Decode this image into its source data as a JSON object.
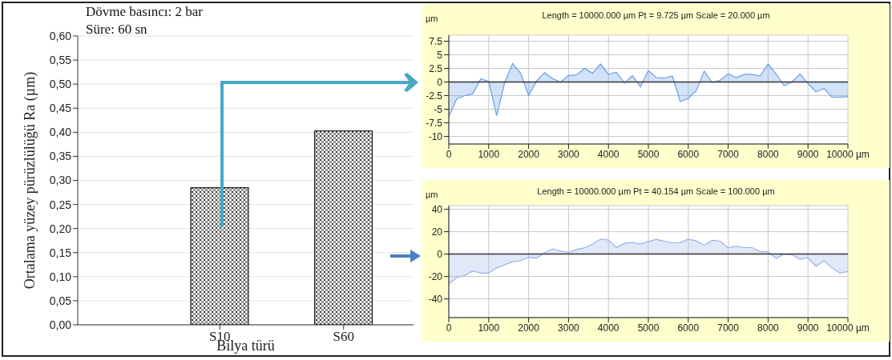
{
  "chart_data": [
    {
      "type": "bar",
      "xlabel": "Bilya türü",
      "ylabel": "Ortalama yüzey pürüzlülüğü  Ra (µm)",
      "categories": [
        "S10",
        "S60"
      ],
      "series": [
        {
          "color": "#222222",
          "values": [
            0.285,
            0.403
          ]
        }
      ],
      "ylim": [
        0,
        0.6
      ],
      "yticks": [
        {
          "value": 0,
          "label": "0,00"
        },
        {
          "value": 0.05,
          "label": "0,05"
        },
        {
          "value": 0.1,
          "label": "0,10"
        },
        {
          "value": 0.15,
          "label": "0,15"
        },
        {
          "value": 0.2,
          "label": "0,20"
        },
        {
          "value": 0.25,
          "label": "0,25"
        },
        {
          "value": 0.3,
          "label": "0,30"
        },
        {
          "value": 0.35,
          "label": "0,35"
        },
        {
          "value": 0.4,
          "label": "0,40"
        },
        {
          "value": 0.45,
          "label": "0,45"
        },
        {
          "value": 0.5,
          "label": "0,50"
        },
        {
          "value": 0.55,
          "label": "0,55"
        },
        {
          "value": 0.6,
          "label": "0,60"
        }
      ],
      "grid": "y",
      "annotations": [
        "Dövme basıncı: 2 bar",
        "Süre: 60 sn"
      ]
    },
    {
      "type": "area",
      "title": "Length = 10000.000 µm  Pt = 9.725 µm  Scale = 20.000 µm",
      "ylabel": "µm",
      "x": [
        0,
        200,
        400,
        600,
        800,
        1000,
        1200,
        1400,
        1600,
        1800,
        2000,
        2200,
        2400,
        2600,
        2800,
        3000,
        3200,
        3400,
        3600,
        3800,
        4000,
        4200,
        4400,
        4600,
        4800,
        5000,
        5200,
        5400,
        5600,
        5800,
        6000,
        6200,
        6400,
        6600,
        6800,
        7000,
        7200,
        7400,
        7600,
        7800,
        8000,
        8200,
        8400,
        8600,
        8800,
        9000,
        9200,
        9400,
        9600,
        9800,
        10000
      ],
      "series": [
        {
          "color": "#6a9ee8",
          "values": [
            -6.4,
            -3.1,
            -2.5,
            -2.2,
            0.6,
            0.1,
            -6.2,
            -0.1,
            3.4,
            1.6,
            -2.5,
            0.2,
            1.7,
            0.6,
            0,
            1.2,
            1.3,
            2.5,
            1.6,
            3.3,
            1.4,
            1.8,
            -0.2,
            1.2,
            -0.9,
            2.1,
            0.8,
            0.7,
            1.1,
            -3.6,
            -3,
            -1.6,
            2,
            -0.1,
            0.3,
            1.5,
            0.8,
            1.4,
            1.4,
            1.1,
            3.3,
            1.5,
            -0.7,
            0,
            1.5,
            -0.3,
            -1.8,
            -1.2,
            -2.8,
            -2.8,
            -2.7
          ]
        }
      ],
      "xlim": [
        0,
        10000
      ],
      "xticks": [
        0,
        1000,
        2000,
        3000,
        4000,
        5000,
        6000,
        7000,
        8000,
        9000,
        {
          "value": 10000,
          "label": "10000 µm"
        }
      ],
      "ylim": [
        -11.4,
        8.6
      ],
      "yticks": [
        -10,
        -7.5,
        -5,
        -2.5,
        0,
        2.5,
        5,
        7.5
      ],
      "grid": true,
      "ref_lines": [
        {
          "axis": "y",
          "value": 0,
          "color": "#333333"
        }
      ]
    },
    {
      "type": "area",
      "title": "Length = 10000.000 µm  Pt = 40.154 µm  Scale = 100.000 µm",
      "ylabel": "µm",
      "x": [
        0,
        200,
        400,
        600,
        800,
        1000,
        1200,
        1400,
        1600,
        1800,
        2000,
        2200,
        2400,
        2600,
        2800,
        3000,
        3200,
        3400,
        3600,
        3800,
        4000,
        4200,
        4400,
        4600,
        4800,
        5000,
        5200,
        5400,
        5600,
        5800,
        6000,
        6200,
        6400,
        6600,
        6800,
        7000,
        7200,
        7400,
        7600,
        7800,
        8000,
        8200,
        8400,
        8600,
        8800,
        9000,
        9200,
        9400,
        9600,
        9800,
        10000
      ],
      "series": [
        {
          "color": "#9ab2e8",
          "values": [
            -26.6,
            -21,
            -19,
            -15,
            -17,
            -17,
            -12.3,
            -9.6,
            -6.8,
            -6,
            -3,
            -3.6,
            1.1,
            4.7,
            2.7,
            1.4,
            4.1,
            5.5,
            9,
            13.4,
            12.6,
            6,
            9.6,
            10.4,
            9,
            11.2,
            13.2,
            11.5,
            10.1,
            10.4,
            13.4,
            11.8,
            8,
            12.3,
            11.5,
            5.5,
            7.1,
            5.8,
            5.8,
            2.2,
            2.2,
            -3.8,
            0,
            -0.5,
            -4.9,
            -3.3,
            -11,
            -5.8,
            -12.3,
            -17,
            -15.6
          ]
        }
      ],
      "xlim": [
        0,
        10000
      ],
      "xticks": [
        0,
        1000,
        2000,
        3000,
        4000,
        5000,
        6000,
        7000,
        8000,
        9000,
        {
          "value": 10000,
          "label": "10000 µm"
        }
      ],
      "ylim": [
        -56.7,
        43.3
      ],
      "yticks": [
        -40,
        -20,
        0,
        20,
        40
      ],
      "grid": true,
      "ref_lines": [
        {
          "axis": "y",
          "value": 0,
          "color": "#333333"
        }
      ]
    }
  ]
}
